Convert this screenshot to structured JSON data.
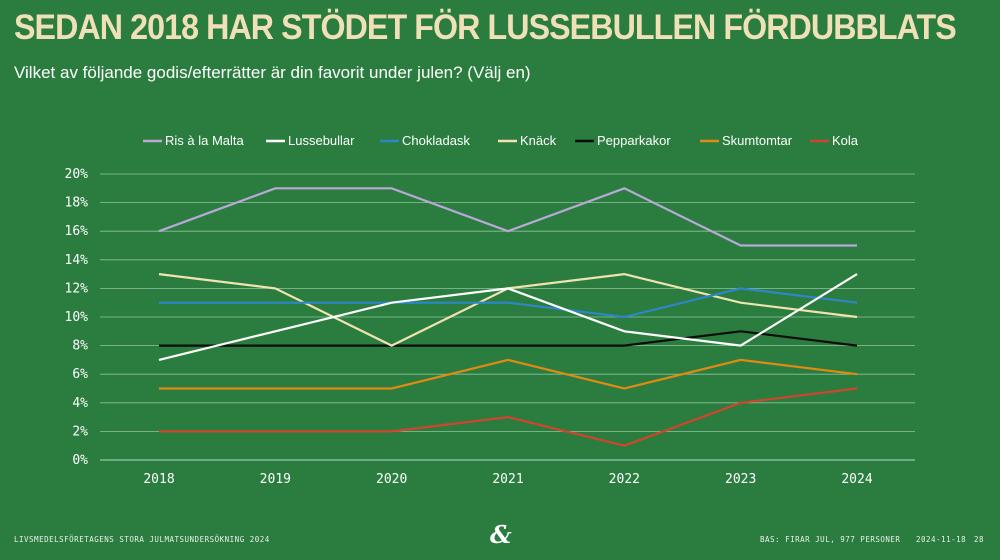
{
  "header": {
    "title": "SEDAN 2018 HAR STÖDET FÖR LUSSEBULLEN FÖRDUBBLATS",
    "subtitle": "Vilket av följande godis/efterrätter är din favorit under julen? (Välj en)"
  },
  "footer": {
    "source": "LIVSMEDELSFÖRETAGENS STORA JULMATSUNDERSÖKNING 2024",
    "logo": "&",
    "base": "BAS: FIRAR JUL, 977 PERSONER",
    "date": "2024-11-18",
    "page": "28"
  },
  "chart_data": {
    "type": "line",
    "x": [
      "2018",
      "2019",
      "2020",
      "2021",
      "2022",
      "2023",
      "2024"
    ],
    "ylim": [
      0,
      20
    ],
    "yticks": [
      "0%",
      "2%",
      "4%",
      "6%",
      "8%",
      "10%",
      "12%",
      "14%",
      "16%",
      "18%",
      "20%"
    ],
    "grid": true,
    "legend_position": "top",
    "series": [
      {
        "name": "Ris à la Malta",
        "color": "#b9a8d8",
        "values": [
          16,
          19,
          19,
          16,
          19,
          15,
          15
        ]
      },
      {
        "name": "Lussebullar",
        "color": "#ffffff",
        "values": [
          7,
          9,
          11,
          12,
          9,
          8,
          13
        ]
      },
      {
        "name": "Chokladask",
        "color": "#2e86c8",
        "values": [
          11,
          11,
          11,
          11,
          10,
          12,
          11
        ]
      },
      {
        "name": "Knäck",
        "color": "#efe3b0",
        "values": [
          13,
          12,
          8,
          12,
          13,
          11,
          10
        ]
      },
      {
        "name": "Pepparkakor",
        "color": "#0c0c0c",
        "values": [
          8,
          8,
          8,
          8,
          8,
          9,
          8
        ]
      },
      {
        "name": "Skumtomtar",
        "color": "#e08a14",
        "values": [
          5,
          5,
          5,
          7,
          5,
          7,
          6
        ]
      },
      {
        "name": "Kola",
        "color": "#d0452e",
        "values": [
          2,
          2,
          2,
          3,
          1,
          4,
          5
        ]
      }
    ]
  }
}
